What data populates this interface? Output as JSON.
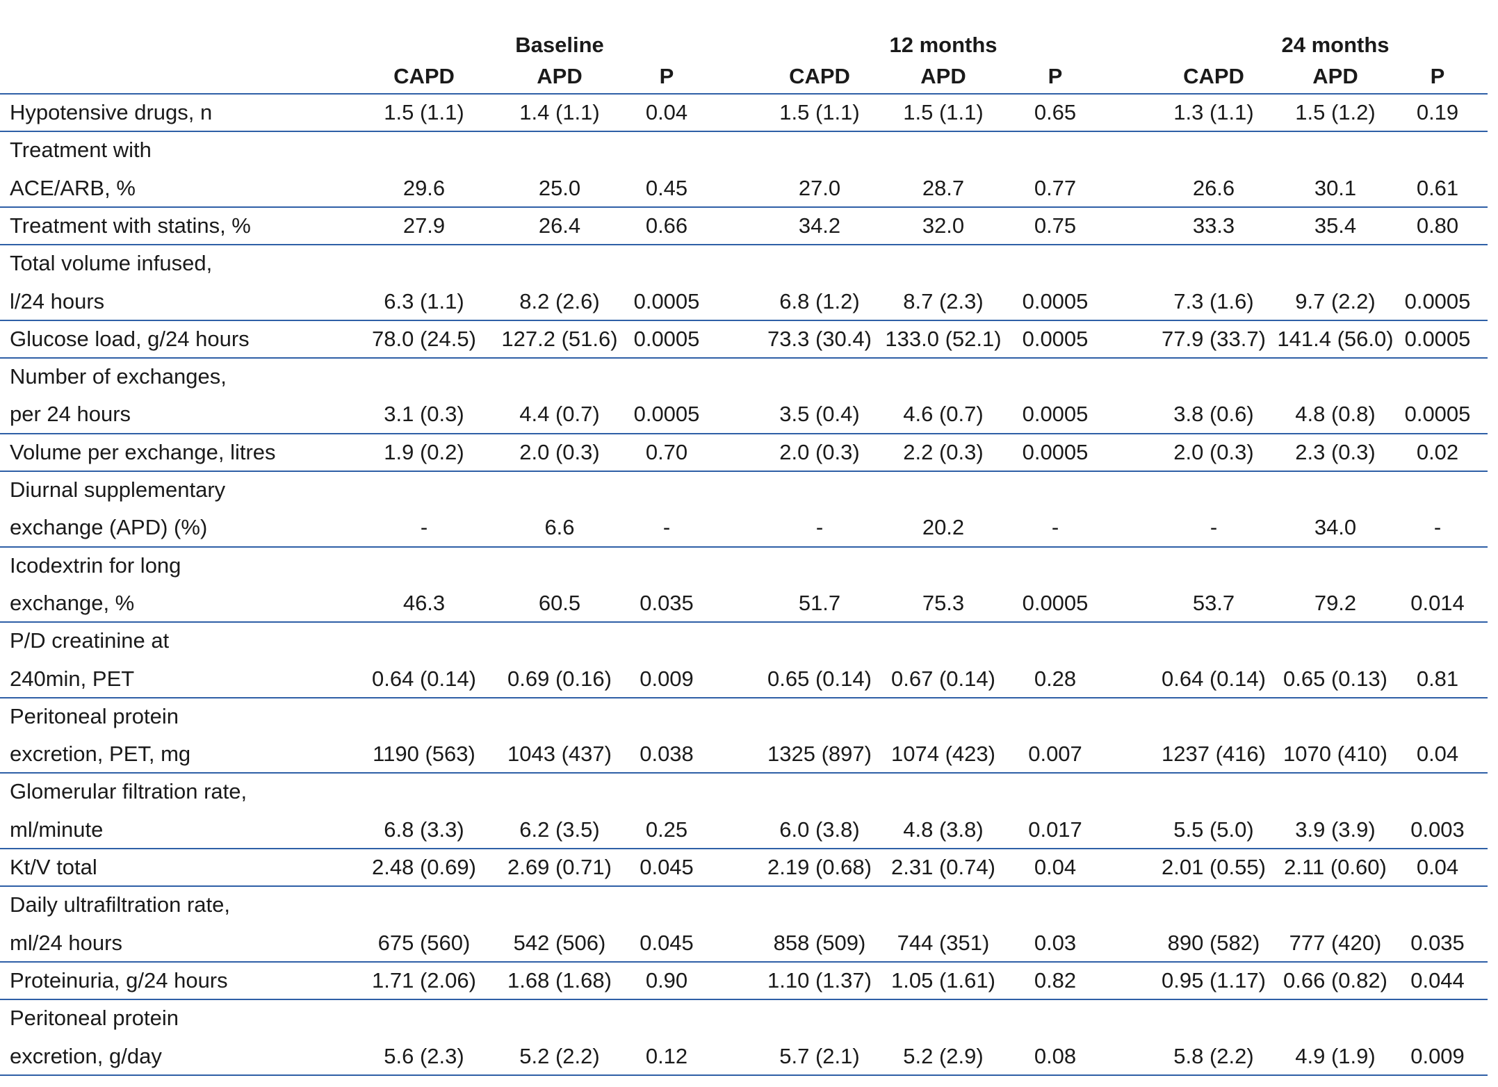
{
  "table": {
    "groups": [
      {
        "title": "Baseline",
        "columns": [
          "CAPD",
          "APD",
          "P"
        ]
      },
      {
        "title": "12 months",
        "columns": [
          "CAPD",
          "APD",
          "P"
        ]
      },
      {
        "title": "24 months",
        "columns": [
          "CAPD",
          "APD",
          "P"
        ]
      }
    ],
    "rows": [
      {
        "label": [
          "Hypotensive drugs, n"
        ],
        "values": [
          "1.5 (1.1)",
          "1.4 (1.1)",
          "0.04",
          "1.5 (1.1)",
          "1.5 (1.1)",
          "0.65",
          "1.3 (1.1)",
          "1.5 (1.2)",
          "0.19"
        ]
      },
      {
        "label": [
          "Treatment with",
          "ACE/ARB, %"
        ],
        "values": [
          "29.6",
          "25.0",
          "0.45",
          "27.0",
          "28.7",
          "0.77",
          "26.6",
          "30.1",
          "0.61"
        ]
      },
      {
        "label": [
          "Treatment with statins, %"
        ],
        "values": [
          "27.9",
          "26.4",
          "0.66",
          "34.2",
          "32.0",
          "0.75",
          "33.3",
          "35.4",
          "0.80"
        ]
      },
      {
        "label": [
          "Total volume infused,",
          "l/24 hours"
        ],
        "values": [
          "6.3 (1.1)",
          "8.2 (2.6)",
          "0.0005",
          "6.8 (1.2)",
          "8.7 (2.3)",
          "0.0005",
          "7.3 (1.6)",
          "9.7 (2.2)",
          "0.0005"
        ]
      },
      {
        "label": [
          "Glucose load, g/24 hours"
        ],
        "values": [
          "78.0 (24.5)",
          "127.2 (51.6)",
          "0.0005",
          "73.3 (30.4)",
          "133.0 (52.1)",
          "0.0005",
          "77.9 (33.7)",
          "141.4 (56.0)",
          "0.0005"
        ]
      },
      {
        "label": [
          "Number of exchanges,",
          "per 24 hours"
        ],
        "values": [
          "3.1 (0.3)",
          "4.4 (0.7)",
          "0.0005",
          "3.5 (0.4)",
          "4.6 (0.7)",
          "0.0005",
          "3.8 (0.6)",
          "4.8 (0.8)",
          "0.0005"
        ]
      },
      {
        "label": [
          "Volume per exchange, litres"
        ],
        "values": [
          "1.9 (0.2)",
          "2.0 (0.3)",
          "0.70",
          "2.0 (0.3)",
          "2.2 (0.3)",
          "0.0005",
          "2.0 (0.3)",
          "2.3 (0.3)",
          "0.02"
        ]
      },
      {
        "label": [
          "Diurnal supplementary",
          "exchange (APD) (%)"
        ],
        "values": [
          "-",
          "6.6",
          "-",
          "-",
          "20.2",
          "-",
          "-",
          "34.0",
          "-"
        ]
      },
      {
        "label": [
          "Icodextrin for long",
          "exchange, %"
        ],
        "values": [
          "46.3",
          "60.5",
          "0.035",
          "51.7",
          "75.3",
          "0.0005",
          "53.7",
          "79.2",
          "0.014"
        ]
      },
      {
        "label": [
          "P/D creatinine at",
          "240min, PET"
        ],
        "values": [
          "0.64 (0.14)",
          "0.69 (0.16)",
          "0.009",
          "0.65 (0.14)",
          "0.67 (0.14)",
          "0.28",
          "0.64 (0.14)",
          "0.65 (0.13)",
          "0.81"
        ]
      },
      {
        "label": [
          "Peritoneal protein",
          "excretion, PET, mg"
        ],
        "values": [
          "1190 (563)",
          "1043 (437)",
          "0.038",
          "1325 (897)",
          "1074 (423)",
          "0.007",
          "1237 (416)",
          "1070 (410)",
          "0.04"
        ]
      },
      {
        "label": [
          "Glomerular filtration rate,",
          "ml/minute"
        ],
        "values": [
          "6.8 (3.3)",
          "6.2 (3.5)",
          "0.25",
          "6.0 (3.8)",
          "4.8 (3.8)",
          "0.017",
          "5.5 (5.0)",
          "3.9 (3.9)",
          "0.003"
        ]
      },
      {
        "label": [
          "Kt/V total"
        ],
        "values": [
          "2.48 (0.69)",
          "2.69 (0.71)",
          "0.045",
          "2.19 (0.68)",
          "2.31 (0.74)",
          "0.04",
          "2.01 (0.55)",
          "2.11 (0.60)",
          "0.04"
        ]
      },
      {
        "label": [
          "Daily ultrafiltration rate,",
          "ml/24 hours"
        ],
        "values": [
          "675 (560)",
          "542 (506)",
          "0.045",
          "858 (509)",
          "744 (351)",
          "0.03",
          "890 (582)",
          "777 (420)",
          "0.035"
        ]
      },
      {
        "label": [
          "Proteinuria, g/24 hours"
        ],
        "values": [
          "1.71 (2.06)",
          "1.68 (1.68)",
          "0.90",
          "1.10 (1.37)",
          "1.05 (1.61)",
          "0.82",
          "0.95 (1.17)",
          "0.66 (0.82)",
          "0.044"
        ]
      },
      {
        "label": [
          "Peritoneal protein",
          "excretion, g/day"
        ],
        "values": [
          "5.6 (2.3)",
          "5.2 (2.2)",
          "0.12",
          "5.7 (2.1)",
          "5.2 (2.9)",
          "0.08",
          "5.8 (2.2)",
          "4.9 (1.9)",
          "0.009"
        ]
      }
    ]
  }
}
